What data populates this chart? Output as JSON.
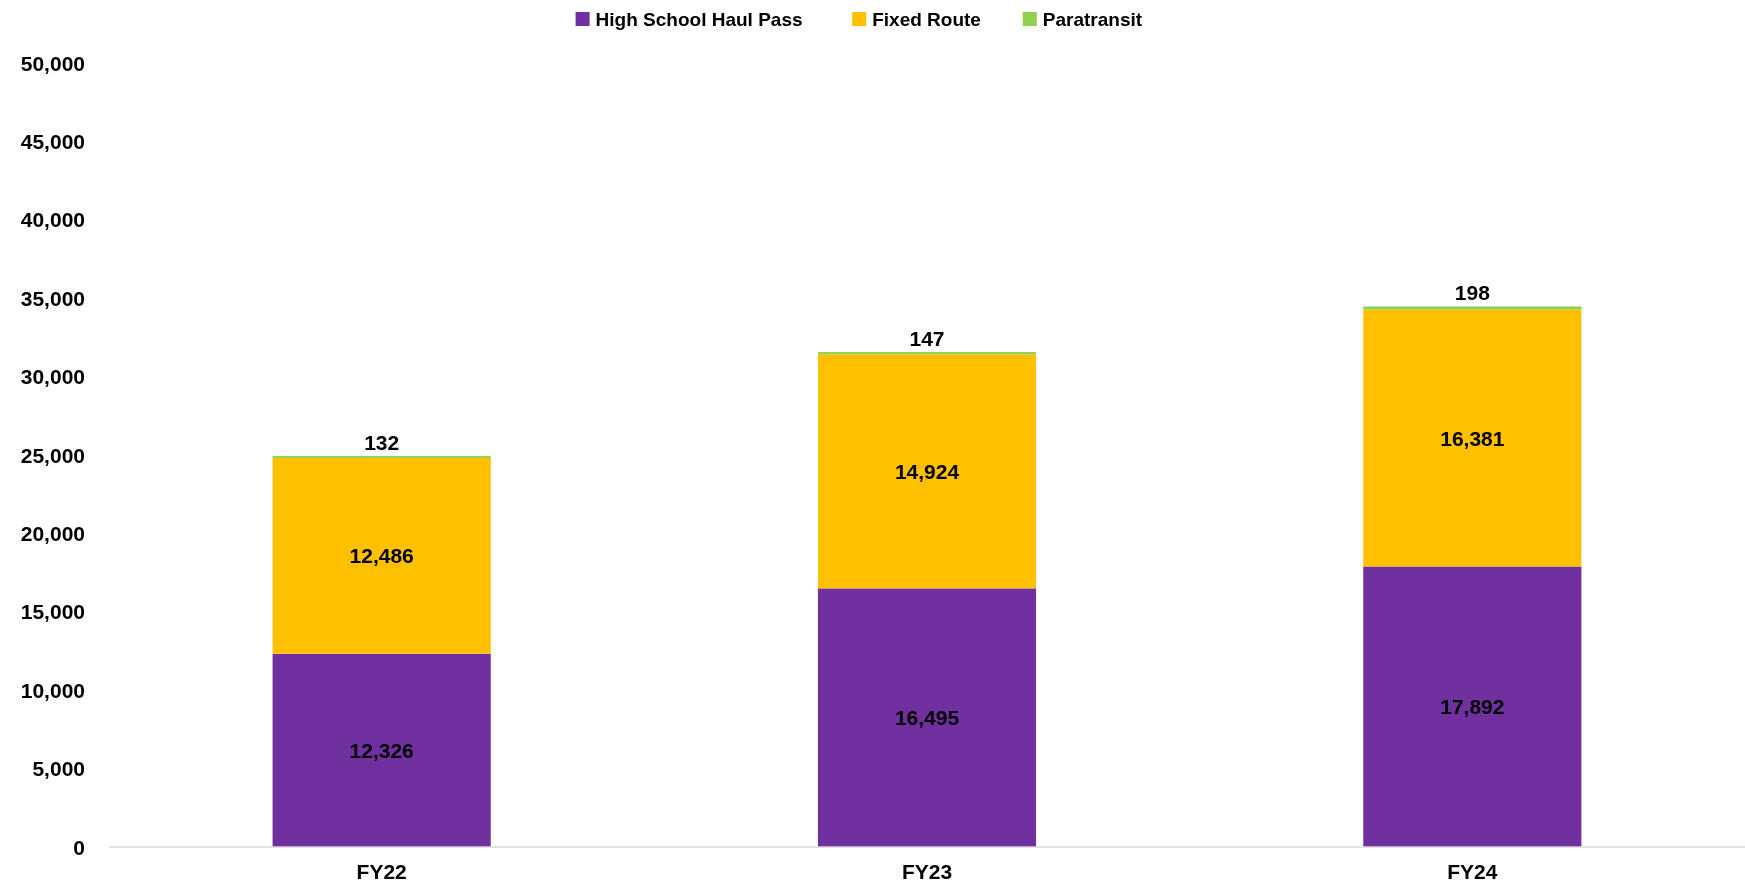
{
  "chart_data": {
    "type": "bar",
    "stacked": true,
    "categories": [
      "FY22",
      "FY23",
      "FY24"
    ],
    "series": [
      {
        "name": "High School Haul Pass",
        "color": "#7030a0",
        "values": [
          12326,
          16495,
          17892
        ],
        "value_labels": [
          "12,326",
          "16,495",
          "17,892"
        ]
      },
      {
        "name": "Fixed Route",
        "color": "#ffc000",
        "values": [
          12486,
          14924,
          16381
        ],
        "value_labels": [
          "12,486",
          "14,924",
          "16,381"
        ]
      },
      {
        "name": "Paratransit",
        "color": "#92d050",
        "values": [
          132,
          147,
          198
        ],
        "value_labels": [
          "132",
          "147",
          "198"
        ]
      }
    ],
    "ylim": [
      0,
      50000
    ],
    "yticks": [
      {
        "value": 0,
        "label": "0"
      },
      {
        "value": 5000,
        "label": "5,000"
      },
      {
        "value": 10000,
        "label": "10,000"
      },
      {
        "value": 15000,
        "label": "15,000"
      },
      {
        "value": 20000,
        "label": "20,000"
      },
      {
        "value": 25000,
        "label": "25,000"
      },
      {
        "value": 30000,
        "label": "30,000"
      },
      {
        "value": 35000,
        "label": "35,000"
      },
      {
        "value": 40000,
        "label": "40,000"
      },
      {
        "value": 45000,
        "label": "45,000"
      },
      {
        "value": 50000,
        "label": "50,000"
      }
    ],
    "grid": false,
    "legend": "top"
  }
}
